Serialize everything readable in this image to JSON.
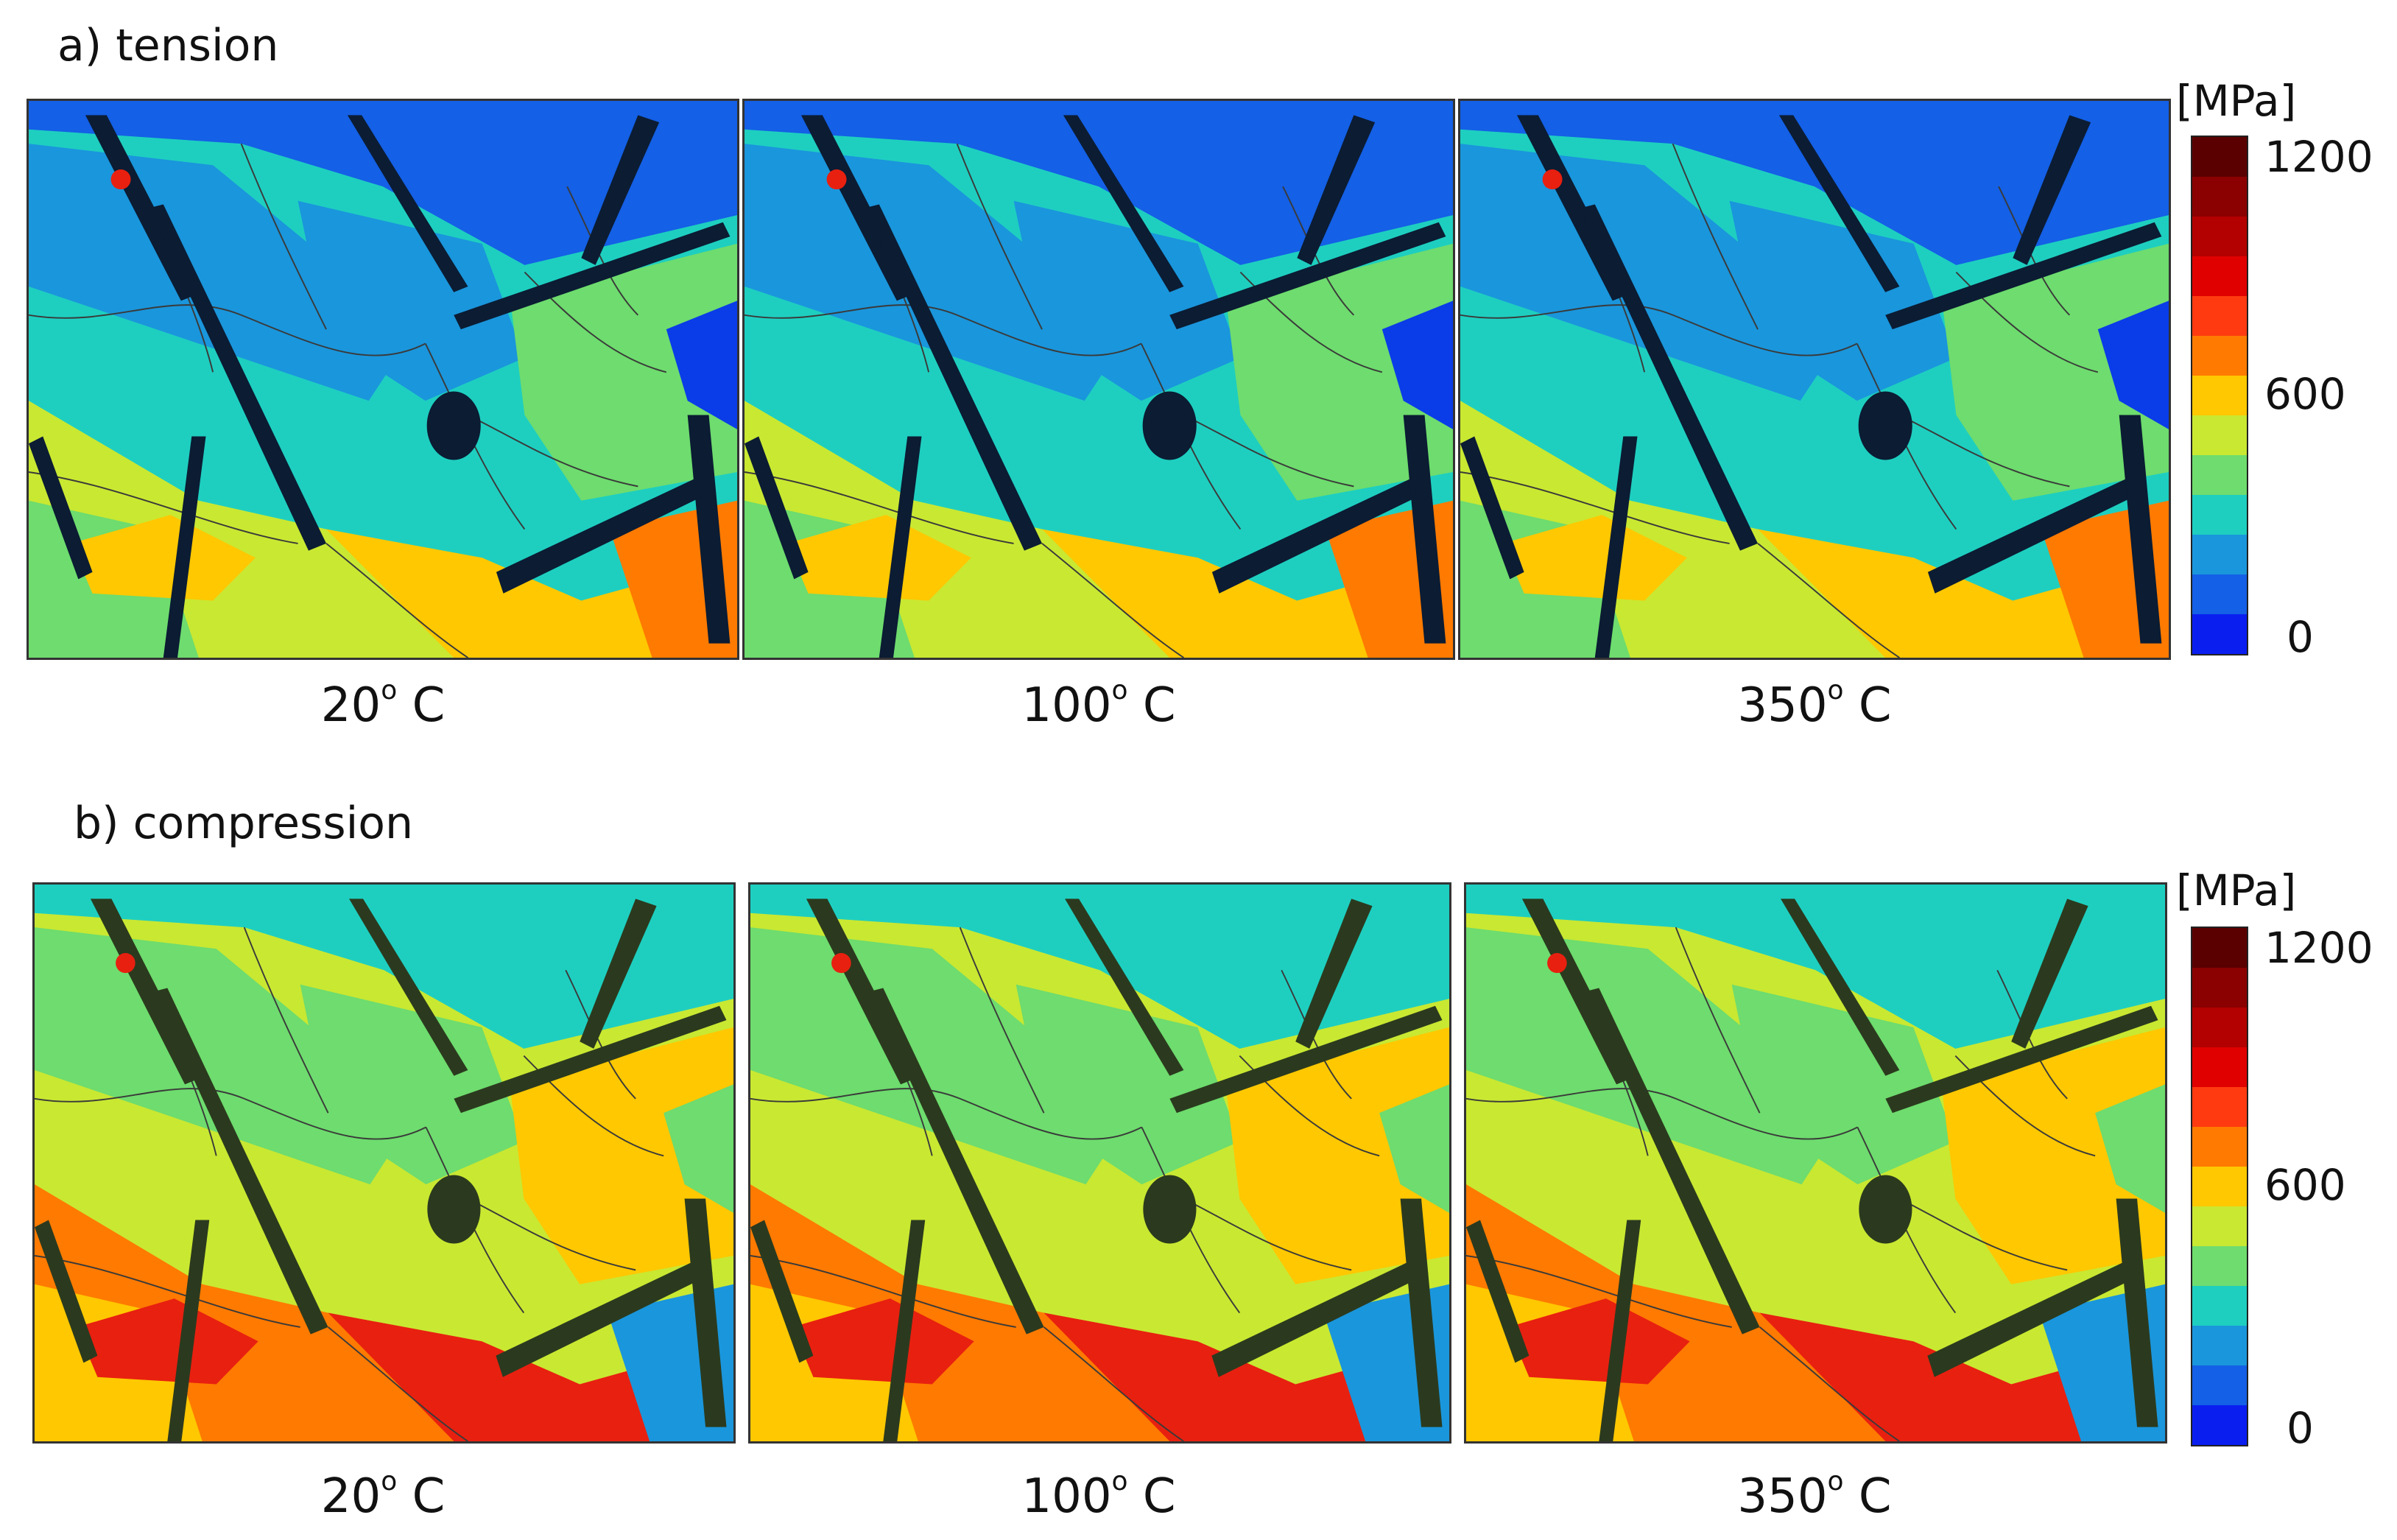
{
  "section_a": {
    "title": "a) tension",
    "panels": [
      {
        "temperature": "20",
        "unit": "C"
      },
      {
        "temperature": "100",
        "unit": "C"
      },
      {
        "temperature": "350",
        "unit": "C"
      }
    ]
  },
  "section_b": {
    "title": "b) compression",
    "panels": [
      {
        "temperature": "20",
        "unit": "C"
      },
      {
        "temperature": "100",
        "unit": "C"
      },
      {
        "temperature": "350",
        "unit": "C"
      }
    ]
  },
  "degree_symbol": "o",
  "colorbar": {
    "unit": "[MPa]",
    "ticks": [
      "1200",
      "600",
      "0"
    ],
    "min": 0,
    "max": 1200,
    "colors": [
      "#5a0000",
      "#8b0000",
      "#b30000",
      "#e00000",
      "#ff3a10",
      "#ff7a00",
      "#ffc800",
      "#c9e832",
      "#6edc6e",
      "#1ecfc0",
      "#1a96dc",
      "#1460e6",
      "#0a1ef0"
    ]
  },
  "map_colors": {
    "deep_blue": "#0a3ce8",
    "blue": "#1460e6",
    "mid_blue": "#1a96dc",
    "cyan": "#1ecfc0",
    "green": "#6edc6e",
    "yellow_green": "#c9e832",
    "yellow": "#ffc800",
    "orange": "#ff7a00",
    "red": "#e82010",
    "inclusion_dark": "#0b1c33",
    "inclusion_olive": "#2b3a1e",
    "grain_line": "#3a3a3a"
  }
}
